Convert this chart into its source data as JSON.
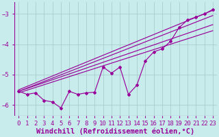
{
  "title": "",
  "xlabel": "Windchill (Refroidissement éolien,°C)",
  "background_color": "#c8ecec",
  "grid_color": "#b0d8d8",
  "line_color": "#990099",
  "xlim": [
    -0.5,
    23.5
  ],
  "ylim": [
    -6.35,
    -2.6
  ],
  "yticks": [
    -6,
    -5,
    -4,
    -3
  ],
  "xticks": [
    0,
    1,
    2,
    3,
    4,
    5,
    6,
    7,
    8,
    9,
    10,
    11,
    12,
    13,
    14,
    15,
    16,
    17,
    18,
    19,
    20,
    21,
    22,
    23
  ],
  "data_x": [
    0,
    1,
    2,
    3,
    4,
    5,
    6,
    7,
    8,
    9,
    10,
    11,
    12,
    13,
    14,
    15,
    16,
    17,
    18,
    19,
    20,
    21,
    22,
    23
  ],
  "data_y": [
    -5.55,
    -5.65,
    -5.6,
    -5.85,
    -5.9,
    -6.1,
    -5.55,
    -5.65,
    -5.6,
    -5.58,
    -4.75,
    -4.95,
    -4.75,
    -5.65,
    -5.35,
    -4.55,
    -4.25,
    -4.15,
    -3.9,
    -3.45,
    -3.2,
    -3.1,
    -3.0,
    -2.85
  ],
  "reg_lines": [
    {
      "x0": 0,
      "y0": -5.5,
      "x1": 23,
      "y1": -2.88
    },
    {
      "x0": 0,
      "y0": -5.55,
      "x1": 23,
      "y1": -3.05
    },
    {
      "x0": 0,
      "y0": -5.55,
      "x1": 23,
      "y1": -3.35
    },
    {
      "x0": 0,
      "y0": -5.6,
      "x1": 23,
      "y1": -3.55
    }
  ],
  "font_family": "monospace",
  "tick_fontsize": 6.5,
  "xlabel_fontsize": 7.5
}
